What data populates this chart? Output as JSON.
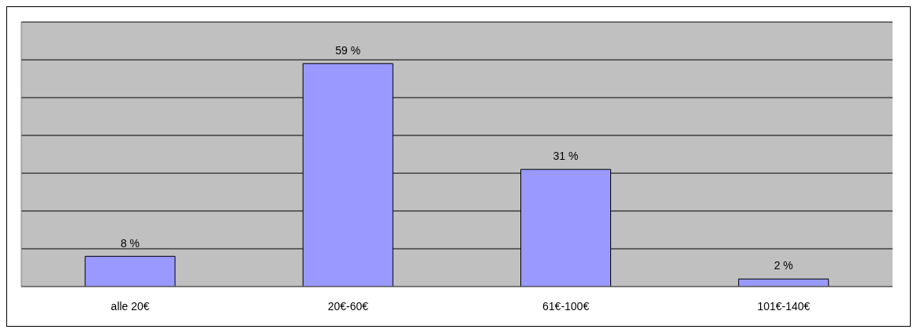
{
  "chart_data": {
    "type": "bar",
    "categories": [
      "alle 20€",
      "20€-60€",
      "61€-100€",
      "101€-140€"
    ],
    "values": [
      8,
      59,
      31,
      2
    ],
    "value_labels": [
      "8 %",
      "59 %",
      "31 %",
      "2 %"
    ],
    "color": "#9999ff",
    "ylim": [
      0,
      70
    ],
    "yticks": [
      {
        "value": 0,
        "label": null
      },
      {
        "value": 10,
        "label": null
      },
      {
        "value": 20,
        "label": null
      },
      {
        "value": 30,
        "label": null
      },
      {
        "value": 40,
        "label": null
      },
      {
        "value": 50,
        "label": null
      },
      {
        "value": 60,
        "label": null
      },
      {
        "value": 70,
        "label": null
      }
    ],
    "tick_labels": "x",
    "grid": "y",
    "legend": false
  }
}
